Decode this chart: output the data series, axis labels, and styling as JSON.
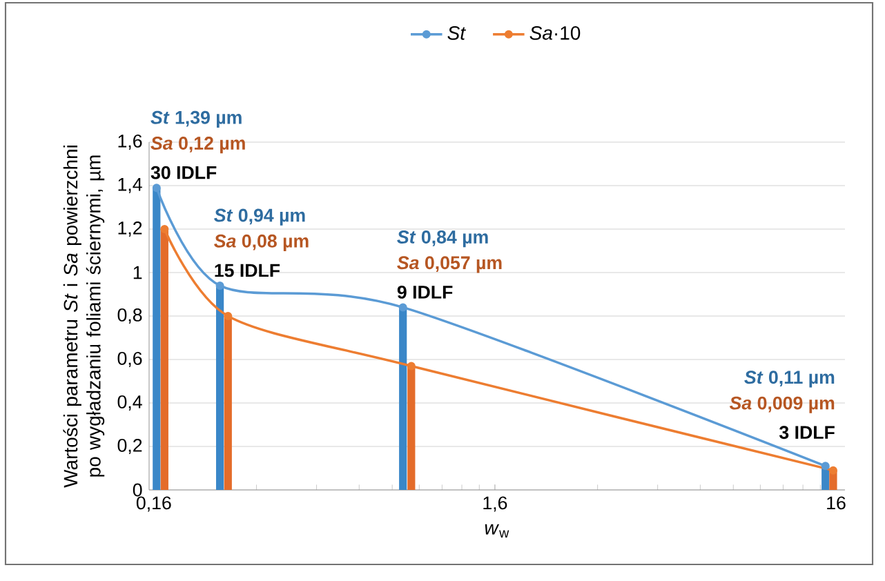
{
  "chart_data": {
    "type": "bar",
    "xlabel": "*w*$_{w}$",
    "ylabel": "Wartości parametru *St* i *Sa* powierzchni po wygładzaniu foliami ściernymi, µm",
    "xlim": [
      0.155,
      17
    ],
    "ylim": [
      0,
      1.6
    ],
    "log": "x",
    "xticks": [
      {
        "value": 0.16,
        "label": "0,16"
      },
      {
        "value": 1.6,
        "label": "1,6"
      },
      16
    ],
    "yticks": [
      0,
      {
        "value": 0.2,
        "label": "0,2"
      },
      {
        "value": 0.4,
        "label": "0,4"
      },
      {
        "value": 0.6,
        "label": "0,6"
      },
      {
        "value": 0.8,
        "label": "0,8"
      },
      1,
      {
        "value": 1.2,
        "label": "1,2"
      },
      {
        "value": 1.4,
        "label": "1,4"
      },
      {
        "value": 1.6,
        "label": "1,6"
      }
    ],
    "grid": "y",
    "legend": "top",
    "marker": "circle",
    "series": [
      {
        "color": "#3a87c8",
        "x": [
          0.163,
          0.25,
          0.86,
          14.9
        ],
        "values": [
          1.39,
          0.94,
          0.84,
          0.11
        ]
      },
      {
        "color": "#e46c2a",
        "x": [
          0.172,
          0.264,
          0.91,
          15.7
        ],
        "values": [
          1.2,
          0.8,
          0.57,
          0.09
        ]
      },
      {
        "type": "line",
        "name": "*St*",
        "color": "#5b9bd5",
        "x": [
          0.163,
          0.25,
          0.86,
          14.9
        ],
        "values": [
          1.39,
          0.94,
          0.84,
          0.11
        ]
      },
      {
        "type": "line",
        "name": "*Sa*·10",
        "color": "#ed7d31",
        "x": [
          0.172,
          0.264,
          0.91,
          15.7
        ],
        "values": [
          1.2,
          0.8,
          0.57,
          0.09
        ]
      }
    ],
    "annotations": [
      "*St* 1,39 µm",
      "*Sa* 0,12  µm",
      "30 IDLF",
      "*St* 0,94 µm",
      "*Sa* 0,08 µm",
      "15 IDLF",
      "*St* 0,84 µm",
      "*Sa* 0,057 µm",
      "9 IDLF",
      "*St* 0,11 µm",
      "*Sa* 0,009 µm",
      "3 IDLF"
    ]
  }
}
